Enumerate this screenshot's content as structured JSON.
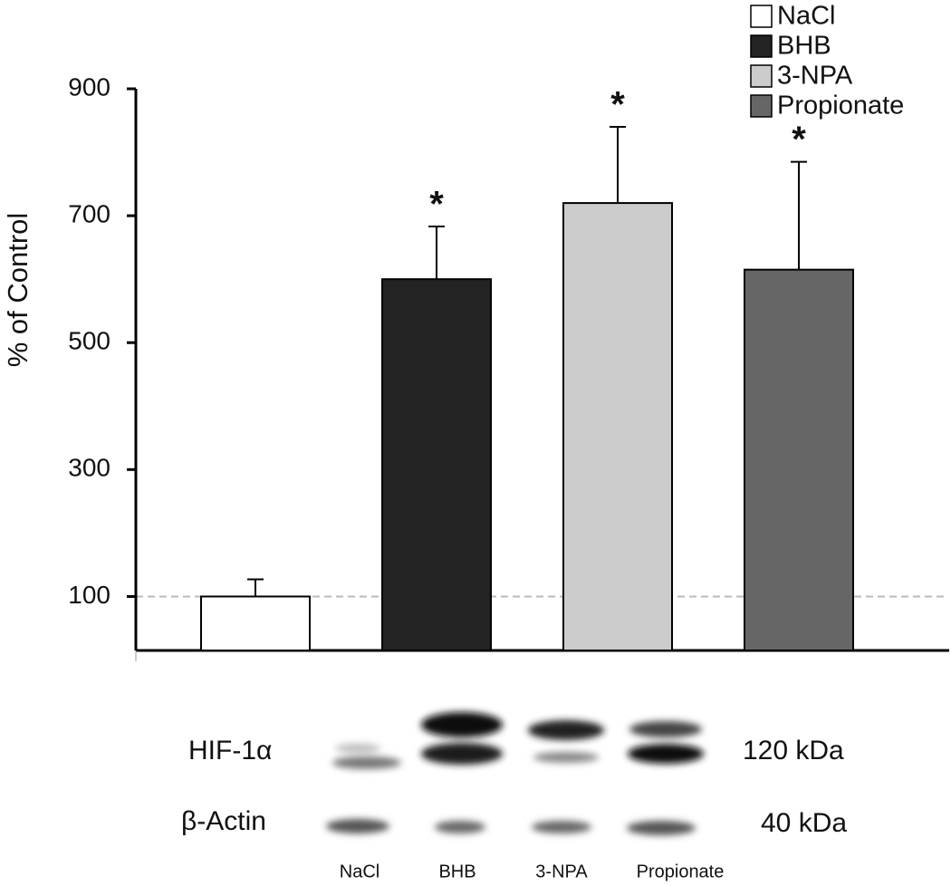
{
  "chart_data": {
    "type": "bar",
    "y_label": "% of Control",
    "categories": [
      "NaCl",
      "BHB",
      "3-NPA",
      "Propionate"
    ],
    "values": [
      100,
      600,
      720,
      615
    ],
    "errors": [
      27,
      83,
      120,
      170
    ],
    "significance": [
      null,
      "*",
      "*",
      "*"
    ],
    "colors": [
      "#ffffff",
      "#232323",
      "#cccccc",
      "#666666"
    ],
    "ylim": [
      15,
      900
    ],
    "yticks": [
      100,
      300,
      500,
      700,
      900
    ],
    "reference_line": 100,
    "legend": "top-right"
  },
  "blot": {
    "rows": [
      {
        "label": "HIF-1α",
        "size": "120 kDa"
      },
      {
        "label": "β-Actin",
        "size": "40 kDa"
      }
    ],
    "lanes": [
      "NaCl",
      "BHB",
      "3-NPA",
      "Propionate"
    ]
  }
}
